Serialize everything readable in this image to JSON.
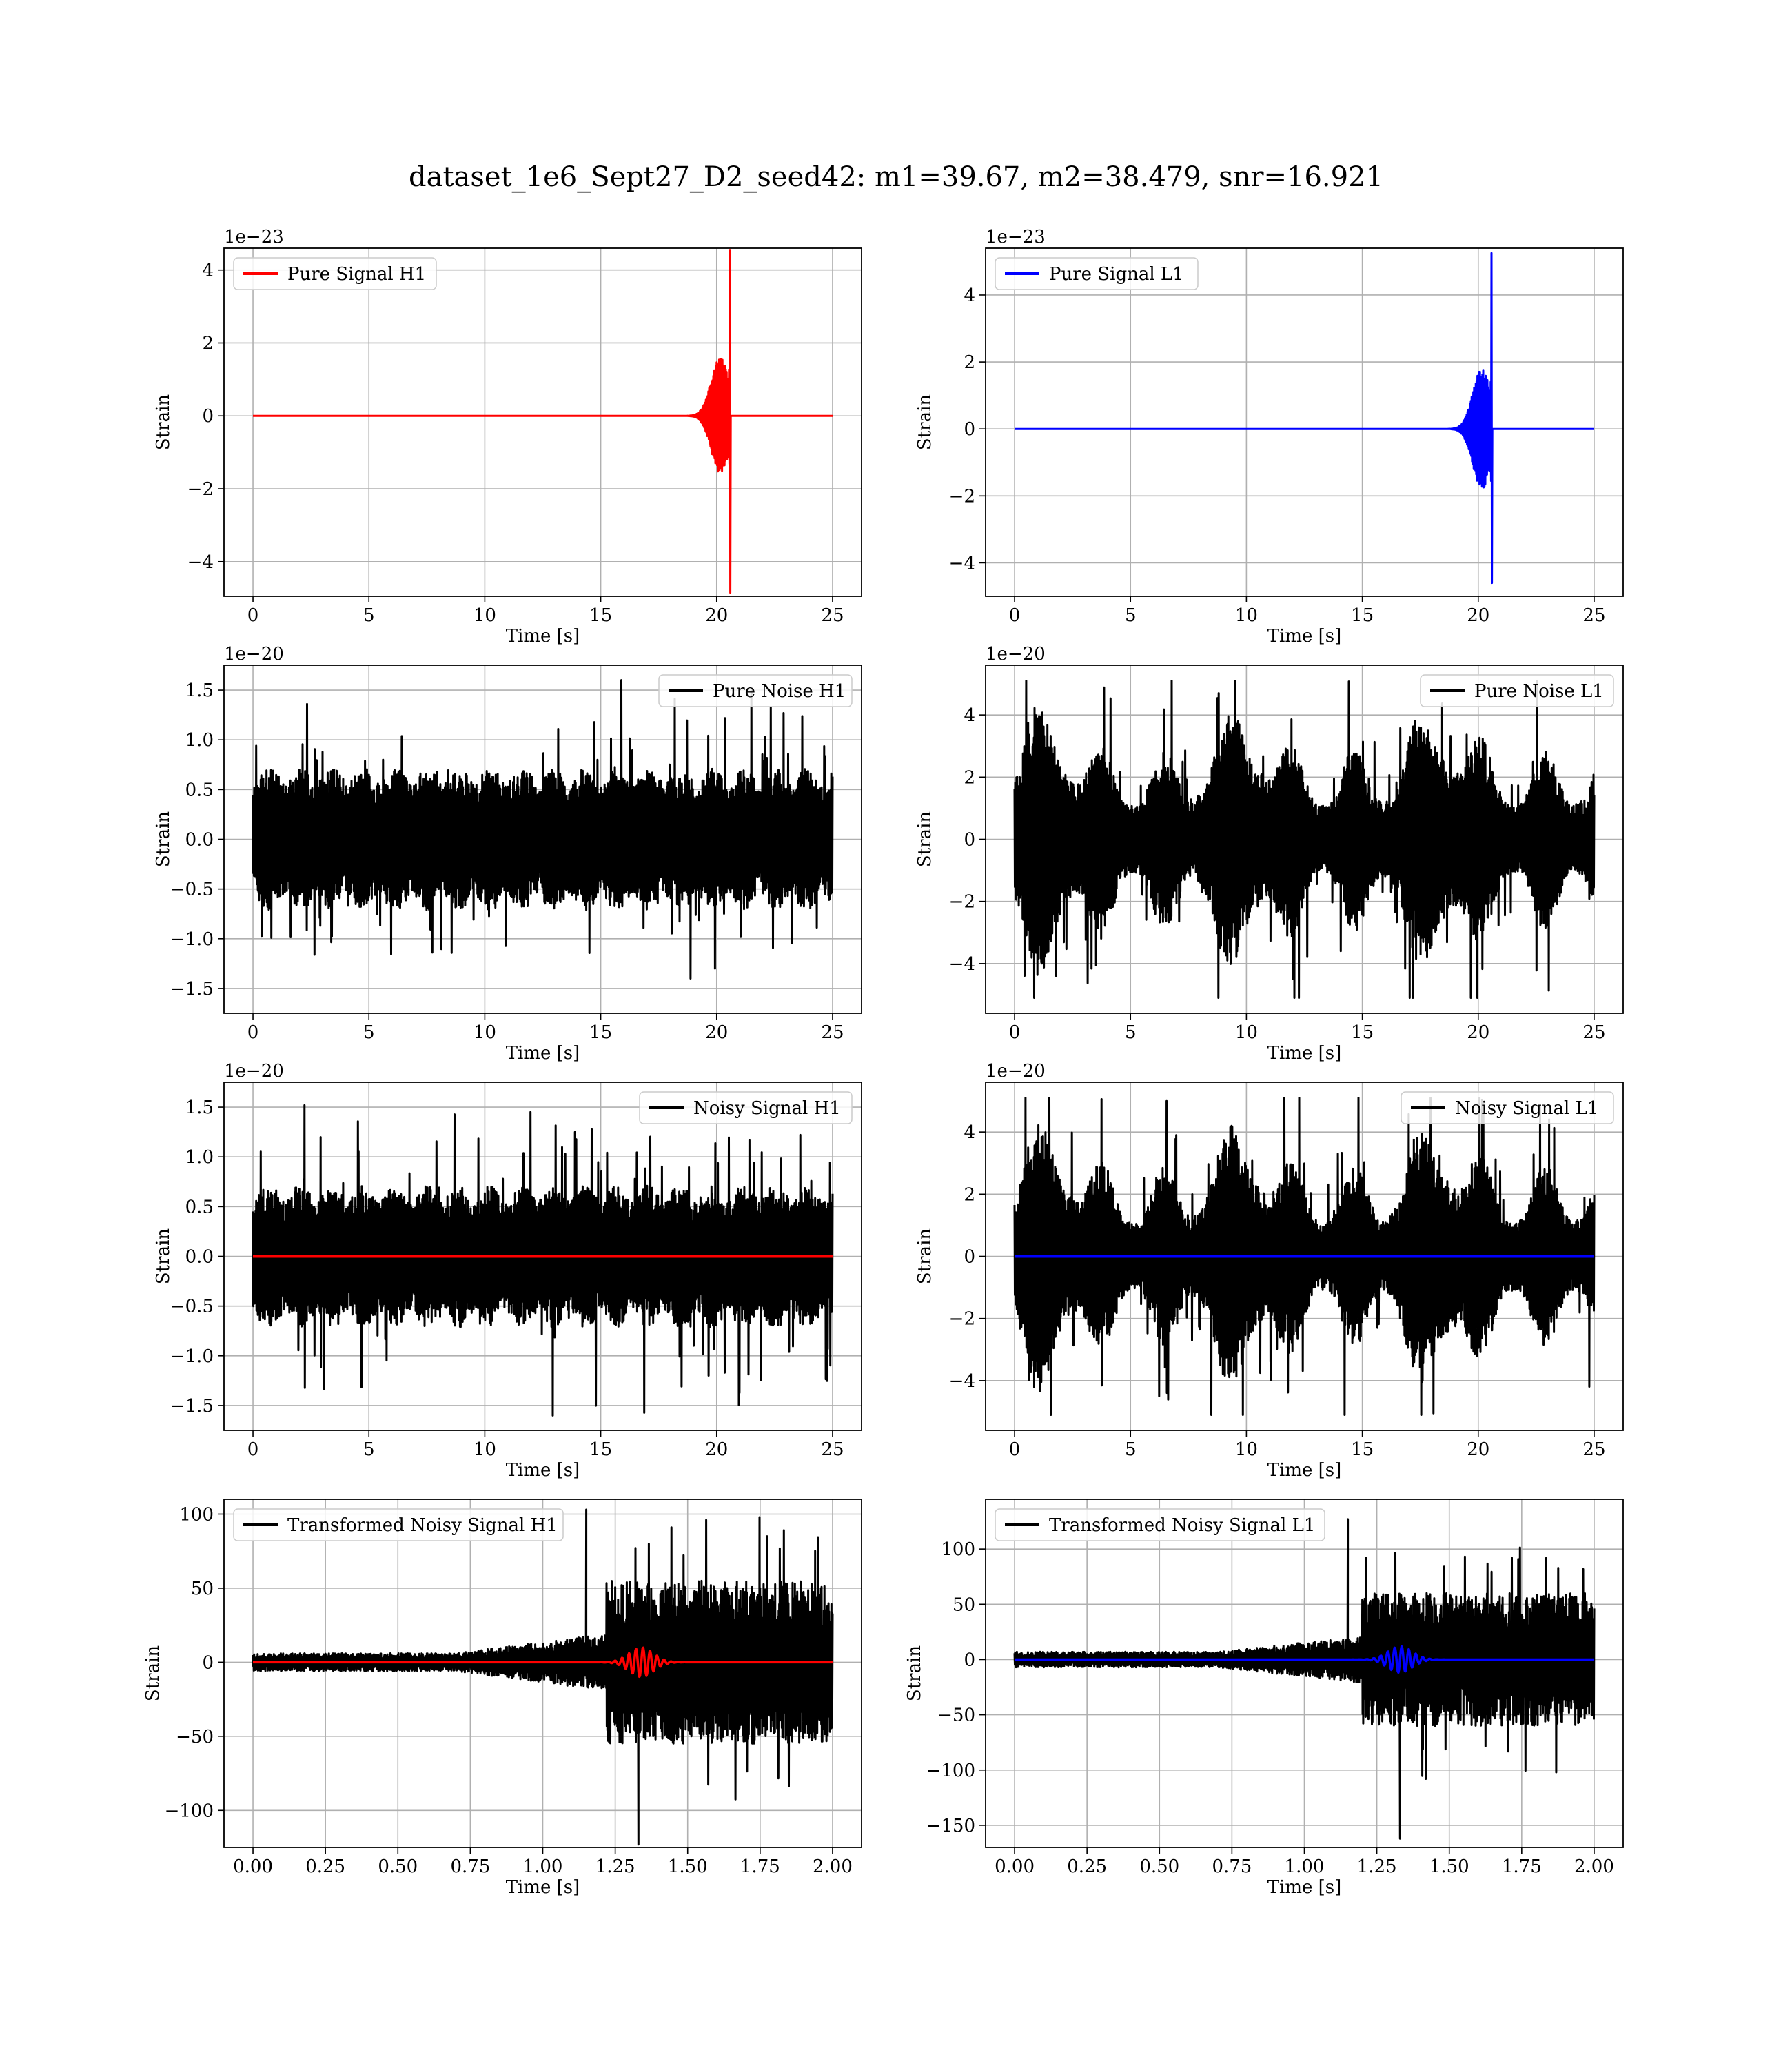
{
  "title": "dataset_1e6_Sept27_D2_seed42: m1=39.67, m2=38.479, snr=16.921",
  "colors": {
    "h1": "#ff0000",
    "l1": "#0000ff",
    "noise": "#000000",
    "grid": "#b0b0b0"
  },
  "chart_data": [
    {
      "type": "line",
      "panel": "pure-signal-h1",
      "xlabel": "Time [s]",
      "ylabel": "Strain",
      "offset": "1e−23",
      "xlim": [
        -1.25,
        26.25
      ],
      "ylim": [
        -4.95,
        4.6
      ],
      "xticks": [
        0,
        5,
        10,
        15,
        20,
        25
      ],
      "xtick_labels": [
        "0",
        "5",
        "10",
        "15",
        "20",
        "25"
      ],
      "yticks": [
        -4,
        -2,
        0,
        2,
        4
      ],
      "ytick_labels": [
        "−4",
        "−2",
        "0",
        "2",
        "4"
      ],
      "legend": "upper-left",
      "grid": true,
      "series": [
        {
          "name": "Pure Signal H1",
          "color": "#ff0000",
          "kind": "chirp",
          "t0": 0,
          "t1": 25,
          "t_merge": 20.6,
          "peak_pos": 4.55,
          "peak_neg": -4.85,
          "envelope_pre": 1.6
        }
      ]
    },
    {
      "type": "line",
      "panel": "pure-signal-l1",
      "xlabel": "Time [s]",
      "ylabel": "Strain",
      "offset": "1e−23",
      "xlim": [
        -1.25,
        26.25
      ],
      "ylim": [
        -5.0,
        5.4
      ],
      "xticks": [
        0,
        5,
        10,
        15,
        20,
        25
      ],
      "xtick_labels": [
        "0",
        "5",
        "10",
        "15",
        "20",
        "25"
      ],
      "yticks": [
        -4,
        -2,
        0,
        2,
        4
      ],
      "ytick_labels": [
        "−4",
        "−2",
        "0",
        "2",
        "4"
      ],
      "legend": "upper-left",
      "grid": true,
      "series": [
        {
          "name": "Pure Signal L1",
          "color": "#0000ff",
          "kind": "chirp",
          "t0": 0,
          "t1": 25,
          "t_merge": 20.6,
          "peak_pos": 5.25,
          "peak_neg": -4.6,
          "envelope_pre": 1.8
        }
      ]
    },
    {
      "type": "line",
      "panel": "pure-noise-h1",
      "xlabel": "Time [s]",
      "ylabel": "Strain",
      "offset": "1e−20",
      "xlim": [
        -1.25,
        26.25
      ],
      "ylim": [
        -1.75,
        1.75
      ],
      "xticks": [
        0,
        5,
        10,
        15,
        20,
        25
      ],
      "xtick_labels": [
        "0",
        "5",
        "10",
        "15",
        "20",
        "25"
      ],
      "yticks": [
        -1.5,
        -1.0,
        -0.5,
        0.0,
        0.5,
        1.0,
        1.5
      ],
      "ytick_labels": [
        "−1.5",
        "−1.0",
        "−0.5",
        "0.0",
        "0.5",
        "1.0",
        "1.5"
      ],
      "legend": "upper-right",
      "grid": true,
      "series": [
        {
          "name": "Pure Noise H1",
          "color": "#000000",
          "kind": "noise",
          "t0": 0,
          "t1": 25,
          "base": 0.62,
          "spike": 1.6,
          "style": "flat"
        }
      ]
    },
    {
      "type": "line",
      "panel": "pure-noise-l1",
      "xlabel": "Time [s]",
      "ylabel": "Strain",
      "offset": "1e−20",
      "xlim": [
        -1.25,
        26.25
      ],
      "ylim": [
        -5.6,
        5.6
      ],
      "xticks": [
        0,
        5,
        10,
        15,
        20,
        25
      ],
      "xtick_labels": [
        "0",
        "5",
        "10",
        "15",
        "20",
        "25"
      ],
      "yticks": [
        -4,
        -2,
        0,
        2,
        4
      ],
      "ytick_labels": [
        "−4",
        "−2",
        "0",
        "2",
        "4"
      ],
      "legend": "upper-right",
      "grid": true,
      "series": [
        {
          "name": "Pure Noise L1",
          "color": "#000000",
          "kind": "noise",
          "t0": 0,
          "t1": 25,
          "base": 1.2,
          "spike": 5.1,
          "style": "bursty"
        }
      ]
    },
    {
      "type": "line",
      "panel": "noisy-signal-h1",
      "xlabel": "Time [s]",
      "ylabel": "Strain",
      "offset": "1e−20",
      "xlim": [
        -1.25,
        26.25
      ],
      "ylim": [
        -1.75,
        1.75
      ],
      "xticks": [
        0,
        5,
        10,
        15,
        20,
        25
      ],
      "xtick_labels": [
        "0",
        "5",
        "10",
        "15",
        "20",
        "25"
      ],
      "yticks": [
        -1.5,
        -1.0,
        -0.5,
        0.0,
        0.5,
        1.0,
        1.5
      ],
      "ytick_labels": [
        "−1.5",
        "−1.0",
        "−0.5",
        "0.0",
        "0.5",
        "1.0",
        "1.5"
      ],
      "legend": "upper-right",
      "grid": true,
      "series": [
        {
          "name": "Noisy Signal H1",
          "color": "#000000",
          "kind": "noise",
          "t0": 0,
          "t1": 25,
          "base": 0.62,
          "spike": 1.6,
          "style": "flat"
        },
        {
          "color": "#ff0000",
          "kind": "flat",
          "t0": 0,
          "t1": 25,
          "value": 0
        }
      ]
    },
    {
      "type": "line",
      "panel": "noisy-signal-l1",
      "xlabel": "Time [s]",
      "ylabel": "Strain",
      "offset": "1e−20",
      "xlim": [
        -1.25,
        26.25
      ],
      "ylim": [
        -5.6,
        5.6
      ],
      "xticks": [
        0,
        5,
        10,
        15,
        20,
        25
      ],
      "xtick_labels": [
        "0",
        "5",
        "10",
        "15",
        "20",
        "25"
      ],
      "yticks": [
        -4,
        -2,
        0,
        2,
        4
      ],
      "ytick_labels": [
        "−4",
        "−2",
        "0",
        "2",
        "4"
      ],
      "legend": "upper-right",
      "grid": true,
      "series": [
        {
          "name": "Noisy Signal L1",
          "color": "#000000",
          "kind": "noise",
          "t0": 0,
          "t1": 25,
          "base": 1.2,
          "spike": 5.1,
          "style": "bursty"
        },
        {
          "color": "#0000ff",
          "kind": "flat",
          "t0": 0,
          "t1": 25,
          "value": 0
        }
      ]
    },
    {
      "type": "line",
      "panel": "transformed-noisy-signal-h1",
      "xlabel": "Time [s]",
      "ylabel": "Strain",
      "offset": "",
      "xlim": [
        -0.1,
        2.1
      ],
      "ylim": [
        -125,
        110
      ],
      "xticks": [
        0,
        0.25,
        0.5,
        0.75,
        1.0,
        1.25,
        1.5,
        1.75,
        2.0
      ],
      "xtick_labels": [
        "0.00",
        "0.25",
        "0.50",
        "0.75",
        "1.00",
        "1.25",
        "1.50",
        "1.75",
        "2.00"
      ],
      "yticks": [
        -100,
        -50,
        0,
        50,
        100
      ],
      "ytick_labels": [
        "−100",
        "−50",
        "0",
        "50",
        "100"
      ],
      "legend": "upper-left",
      "grid": true,
      "series": [
        {
          "name": "Transformed Noisy Signal H1",
          "color": "#000000",
          "kind": "whitened",
          "t0": 0,
          "t1": 2.0,
          "t_jump": 1.22,
          "pre": 6,
          "post": 55,
          "spike_max": 103,
          "spike_min": -123
        },
        {
          "color": "#ff0000",
          "kind": "wavelet",
          "t0": 0,
          "t1": 2.0,
          "t_peak": 1.34,
          "amp": 10
        }
      ]
    },
    {
      "type": "line",
      "panel": "transformed-noisy-signal-l1",
      "xlabel": "Time [s]",
      "ylabel": "Strain",
      "offset": "",
      "xlim": [
        -0.1,
        2.1
      ],
      "ylim": [
        -170,
        145
      ],
      "xticks": [
        0,
        0.25,
        0.5,
        0.75,
        1.0,
        1.25,
        1.5,
        1.75,
        2.0
      ],
      "xtick_labels": [
        "0.00",
        "0.25",
        "0.50",
        "0.75",
        "1.00",
        "1.25",
        "1.50",
        "1.75",
        "2.00"
      ],
      "yticks": [
        -150,
        -100,
        -50,
        0,
        50,
        100
      ],
      "ytick_labels": [
        "−150",
        "−100",
        "−50",
        "0",
        "50",
        "100"
      ],
      "legend": "upper-left",
      "grid": true,
      "series": [
        {
          "name": "Transformed Noisy Signal L1",
          "color": "#000000",
          "kind": "whitened",
          "t0": 0,
          "t1": 2.0,
          "t_jump": 1.2,
          "pre": 7,
          "post": 60,
          "spike_max": 127,
          "spike_min": -162
        },
        {
          "color": "#0000ff",
          "kind": "wavelet",
          "t0": 0,
          "t1": 2.0,
          "t_peak": 1.33,
          "amp": 12
        }
      ]
    }
  ]
}
